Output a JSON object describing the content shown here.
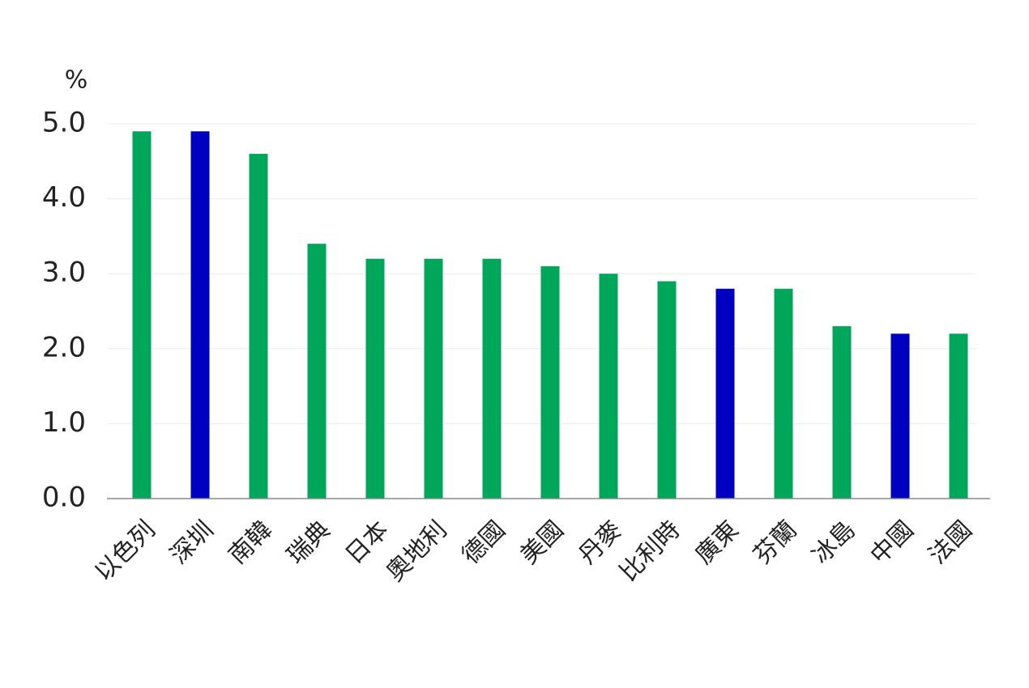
{
  "chart_data": {
    "type": "bar",
    "unit": "%",
    "categories": [
      "以色列",
      "深圳",
      "南韓",
      "瑞典",
      "日本",
      "奧地利",
      "德國",
      "美國",
      "丹麥",
      "比利時",
      "廣東",
      "芬蘭",
      "冰島",
      "中國",
      "法國"
    ],
    "values": [
      4.9,
      4.9,
      4.6,
      3.4,
      3.2,
      3.2,
      3.2,
      3.1,
      3.0,
      2.9,
      2.8,
      2.8,
      2.3,
      2.2,
      2.2
    ],
    "colors": [
      "#00a65a",
      "#0000c0",
      "#00a65a",
      "#00a65a",
      "#00a65a",
      "#00a65a",
      "#00a65a",
      "#00a65a",
      "#00a65a",
      "#00a65a",
      "#0000c0",
      "#00a65a",
      "#00a65a",
      "#0000c0",
      "#00a65a"
    ],
    "ylim": [
      0,
      5
    ],
    "yticks": [
      {
        "value": 0,
        "label": "0.0"
      },
      {
        "value": 1,
        "label": "1.0"
      },
      {
        "value": 2,
        "label": "2.0"
      },
      {
        "value": 3,
        "label": "3.0"
      },
      {
        "value": 4,
        "label": "4.0"
      },
      {
        "value": 5,
        "label": "5.0"
      }
    ],
    "grid": true
  }
}
